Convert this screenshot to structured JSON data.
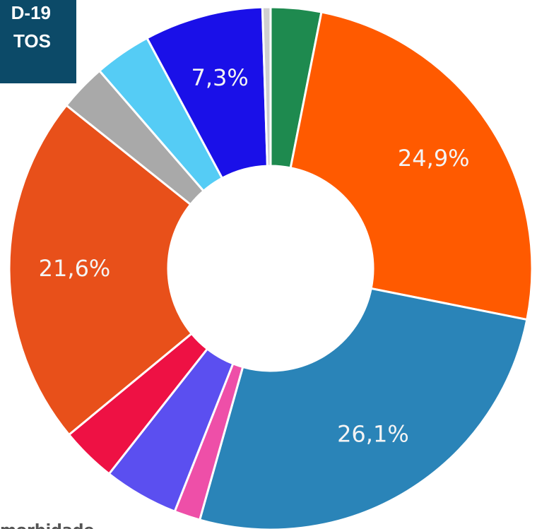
{
  "chart_data": {
    "type": "donut",
    "title_lines": [
      "D-19",
      "TOS"
    ],
    "footer": "morbidade",
    "values": [
      3.1,
      24.9,
      26.1,
      1.6,
      4.6,
      3.4,
      21.6,
      2.9,
      3.5,
      7.3,
      0.5
    ],
    "value_labels": [
      null,
      "24,9%",
      "26,1%",
      null,
      null,
      null,
      "21,6%",
      null,
      null,
      "7,3%",
      null
    ],
    "colors": [
      "#1e8a4f",
      "#ff5a00",
      "#2a84b8",
      "#ee4fa8",
      "#5b4ff0",
      "#ee1144",
      "#e8501a",
      "#a9a9a9",
      "#55ccf5",
      "#1a10e8",
      "#cfcfcf"
    ]
  }
}
